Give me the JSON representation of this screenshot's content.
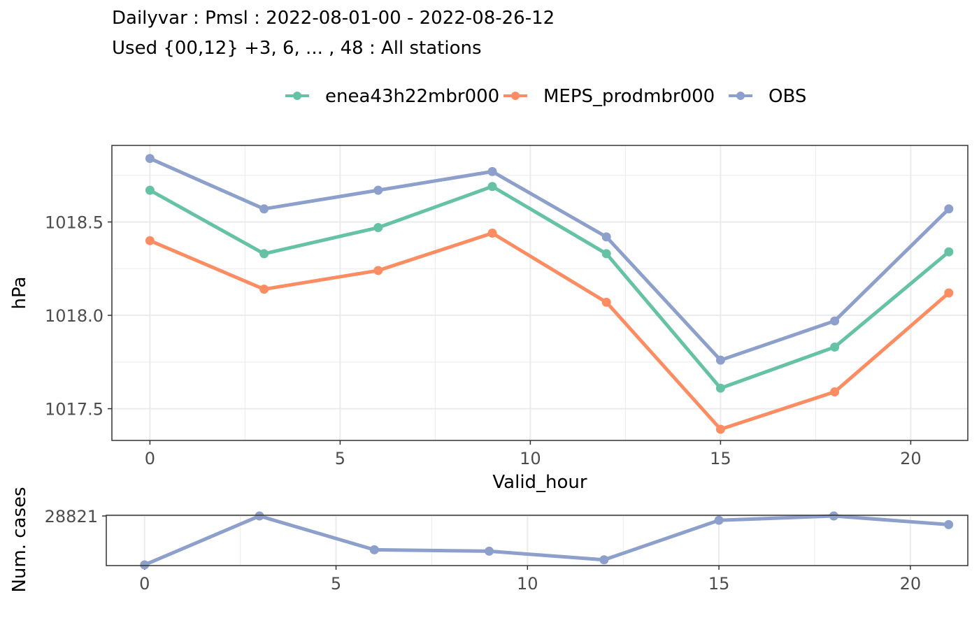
{
  "header": {
    "title": "Dailyvar : Pmsl : 2022-08-01-00 - 2022-08-26-12",
    "subtitle": "Used {00,12} +3, 6, ... , 48 : All stations"
  },
  "colors": {
    "enea": "#66c2a5",
    "meps": "#fc8d62",
    "obs": "#8da0cb",
    "grid": "#ebebeb",
    "panel_border": "#333333"
  },
  "chart_data": [
    {
      "type": "line",
      "title": "",
      "xlabel": "Valid_hour",
      "ylabel": "hPa",
      "x": [
        0,
        3,
        6,
        9,
        12,
        15,
        18,
        21
      ],
      "xlim": [
        -1,
        21.5
      ],
      "ylim": [
        1017.33,
        1018.91
      ],
      "x_ticks": [
        0,
        5,
        10,
        15,
        20
      ],
      "y_ticks": [
        1017.5,
        1018.0,
        1018.5
      ],
      "y_tick_labels": [
        "1017.5",
        "1018.0",
        "1018.5"
      ],
      "grid": true,
      "legend": "top",
      "series": [
        {
          "name": "enea43h22mbr000",
          "color": "#66c2a5",
          "values": [
            1018.67,
            1018.33,
            1018.47,
            1018.69,
            1018.33,
            1017.61,
            1017.83,
            1018.34
          ]
        },
        {
          "name": "MEPS_prodmbr000",
          "color": "#fc8d62",
          "values": [
            1018.4,
            1018.14,
            1018.24,
            1018.44,
            1018.07,
            1017.39,
            1017.59,
            1018.12
          ]
        },
        {
          "name": "OBS",
          "color": "#8da0cb",
          "values": [
            1018.84,
            1018.57,
            1018.67,
            1018.77,
            1018.42,
            1017.76,
            1017.97,
            1018.57
          ]
        }
      ]
    },
    {
      "type": "line",
      "title": "",
      "xlabel": "",
      "ylabel": "Num. cases",
      "x": [
        0,
        3,
        6,
        9,
        12,
        15,
        18,
        21
      ],
      "xlim": [
        -1,
        21.5
      ],
      "ylim": [
        28752,
        28822
      ],
      "x_ticks": [
        0,
        5,
        10,
        15,
        20
      ],
      "y_ticks": [
        28821
      ],
      "y_tick_labels": [
        "28821"
      ],
      "grid": true,
      "series": [
        {
          "name": "",
          "color": "#8da0cb",
          "values": [
            28753,
            28821,
            28774,
            28772,
            28760,
            28815,
            28821,
            28809
          ]
        }
      ]
    }
  ]
}
